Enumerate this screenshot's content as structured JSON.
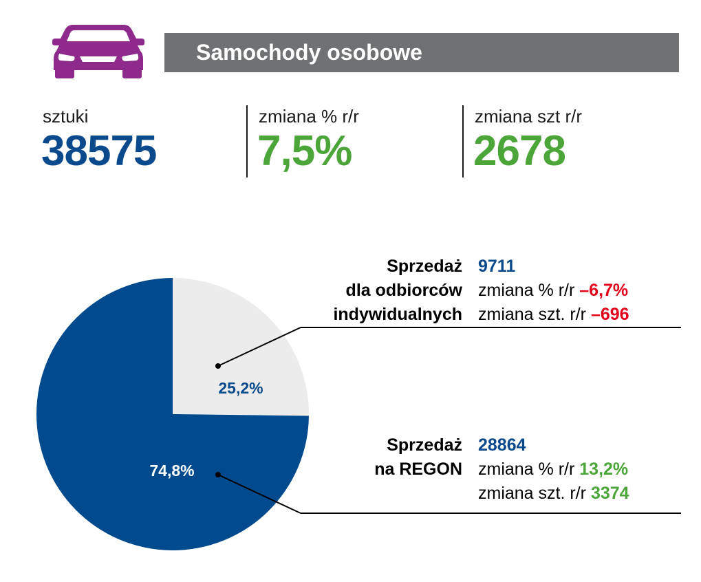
{
  "header": {
    "title": "Samochody osobowe",
    "icon": "car-icon",
    "icon_color": "#8e2a8b",
    "bar_color": "#6f7173"
  },
  "stats": [
    {
      "label": "sztuki",
      "value": "38575",
      "color": "#0a4a8c"
    },
    {
      "label": "zmiana % r/r",
      "value": "7,5%",
      "color": "#4ba539"
    },
    {
      "label": "zmiana szt r/r",
      "value": "2678",
      "color": "#4ba539"
    }
  ],
  "chart_data": {
    "type": "pie",
    "slices": [
      {
        "label": "25,2%",
        "value": 25.2,
        "color": "#ececec",
        "label_color": "#0a4a8c"
      },
      {
        "label": "74,8%",
        "value": 74.8,
        "color": "#004a8d",
        "label_color": "#ffffff"
      }
    ]
  },
  "blocks": [
    {
      "title_lines": [
        "Sprzedaż",
        "dla odbiorców",
        "indywidualnych"
      ],
      "count": "9711",
      "count_color": "#0a4a8c",
      "pct_label": "zmiana % r/r",
      "pct_value": "–6,7%",
      "szt_label": "zmiana szt. r/r",
      "szt_value": "–696",
      "change_color": "#e2001a"
    },
    {
      "title_lines": [
        "Sprzedaż",
        "na REGON"
      ],
      "count": "28864",
      "count_color": "#0a4a8c",
      "pct_label": "zmiana % r/r",
      "pct_value": "13,2%",
      "szt_label": "zmiana szt. r/r",
      "szt_value": "3374",
      "change_color": "#4ba539"
    }
  ]
}
